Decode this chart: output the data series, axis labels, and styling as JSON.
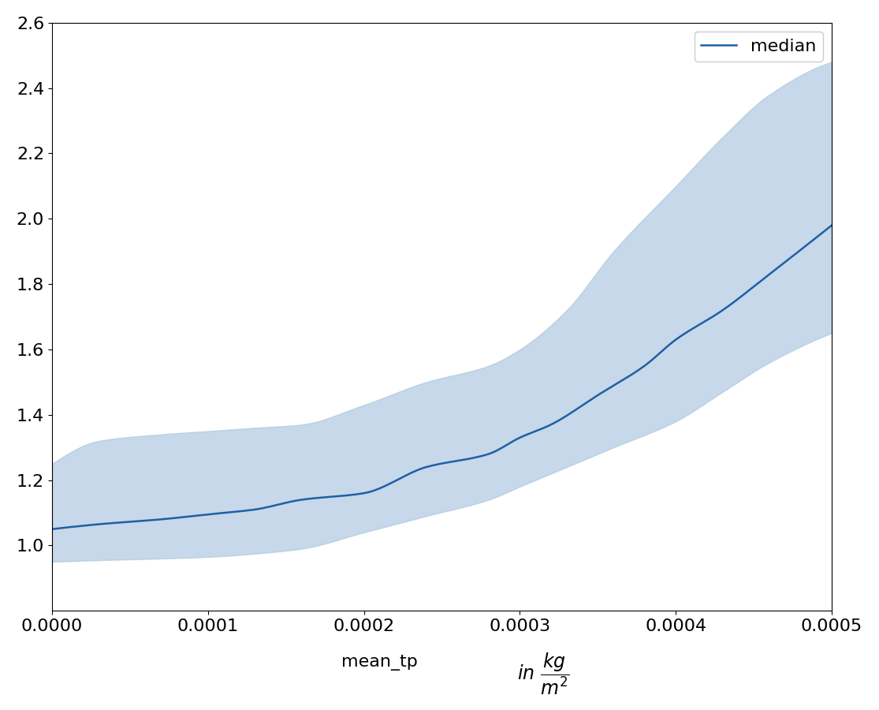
{
  "x_min": 0.0,
  "x_max": 0.0005,
  "y_min": 0.8,
  "y_max": 2.6,
  "line_color": "#1f5fa6",
  "fill_color": "#aec8e0",
  "fill_alpha": 0.7,
  "line_width": 1.8,
  "legend_label": "median",
  "legend_loc": "upper right",
  "yticks": [
    1.0,
    1.2,
    1.4,
    1.6,
    1.8,
    2.0,
    2.2,
    2.4,
    2.6
  ],
  "xticks": [
    0.0,
    0.0001,
    0.0002,
    0.0003,
    0.0004,
    0.0005
  ],
  "background_color": "#ffffff",
  "figsize": [
    11.15,
    9.0
  ],
  "dpi": 100,
  "median_x": [
    0.0,
    3e-05,
    7e-05,
    0.0001,
    0.00013,
    0.00016,
    0.0002,
    0.00024,
    0.00028,
    0.0003,
    0.00032,
    0.00035,
    0.00038,
    0.0004,
    0.00043,
    0.00046,
    0.0005
  ],
  "median_y": [
    1.05,
    1.065,
    1.08,
    1.095,
    1.11,
    1.14,
    1.16,
    1.24,
    1.28,
    1.33,
    1.37,
    1.46,
    1.55,
    1.63,
    1.72,
    1.83,
    1.98
  ],
  "upper_x": [
    0.0,
    3e-05,
    7e-05,
    0.0001,
    0.00013,
    0.00016,
    0.0002,
    0.00024,
    0.00028,
    0.0003,
    0.00033,
    0.00036,
    0.0004,
    0.00043,
    0.00046,
    0.0005
  ],
  "upper_y": [
    1.25,
    1.32,
    1.34,
    1.35,
    1.36,
    1.37,
    1.43,
    1.5,
    1.55,
    1.6,
    1.72,
    1.9,
    2.1,
    2.25,
    2.38,
    2.48
  ],
  "lower_x": [
    0.0,
    3e-05,
    7e-05,
    0.0001,
    0.00013,
    0.00016,
    0.0002,
    0.00024,
    0.00028,
    0.0003,
    0.00033,
    0.00036,
    0.0004,
    0.00043,
    0.00046,
    0.0005
  ],
  "lower_y": [
    0.95,
    0.955,
    0.96,
    0.965,
    0.975,
    0.99,
    1.04,
    1.09,
    1.14,
    1.18,
    1.24,
    1.3,
    1.38,
    1.47,
    1.56,
    1.65
  ]
}
